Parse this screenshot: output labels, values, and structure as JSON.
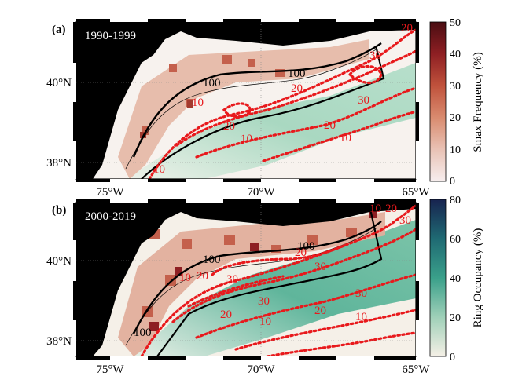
{
  "figure": {
    "panels": [
      {
        "id": "a",
        "label": "(a)",
        "period": "1990-1999",
        "contour_labels_red": [
          "10",
          "20",
          "30",
          "20",
          "10",
          "20",
          "10",
          "20",
          "30",
          "10"
        ],
        "contour_labels_black": [
          "100",
          "100"
        ]
      },
      {
        "id": "b",
        "label": "(b)",
        "period": "2000-2019",
        "contour_labels_red": [
          "10",
          "20",
          "30",
          "30",
          "20",
          "10",
          "30",
          "20",
          "10",
          "30",
          "20",
          "10",
          "20",
          "30"
        ],
        "contour_labels_black": [
          "100",
          "100",
          "100"
        ]
      }
    ],
    "x_ticks": [
      "75°W",
      "70°W",
      "65°W"
    ],
    "y_ticks": [
      "40°N",
      "38°N"
    ],
    "colorbars": [
      {
        "label": "Smax Frequency (%)",
        "ticks": [
          "0",
          "10",
          "20",
          "30",
          "40",
          "50"
        ],
        "colors": [
          "#f7eeee",
          "#e9c2b5",
          "#d98b6f",
          "#c0523c",
          "#8e1f23",
          "#4a0d12"
        ]
      },
      {
        "label": "Ring Occupancy (%)",
        "ticks": [
          "0",
          "20",
          "40",
          "60",
          "80"
        ],
        "colors": [
          "#f5f0e6",
          "#9fd0b8",
          "#3aa08a",
          "#1f6a73",
          "#17234f"
        ]
      }
    ],
    "colors": {
      "land": "#000000",
      "contour_red": "#e8191c",
      "contour_black": "#000000",
      "ring_green": "#8fcfb0",
      "smax_red": "#c85a45"
    }
  }
}
